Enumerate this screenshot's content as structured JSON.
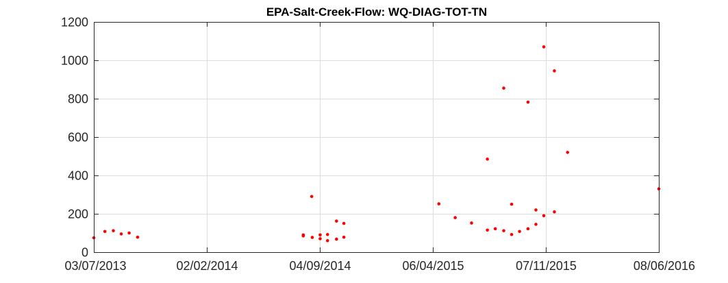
{
  "chart_data": {
    "type": "scatter",
    "title": "EPA-Salt-Creek-Flow: WQ-DIAG-TOT-TN",
    "xlabel": "",
    "ylabel": "",
    "ylim": [
      0,
      1200
    ],
    "yticks": [
      0,
      200,
      400,
      600,
      800,
      1000,
      1200
    ],
    "xlim": [
      "2013-07-03",
      "2016-06-08"
    ],
    "xticks": [
      "03/07/2013",
      "02/02/2014",
      "04/09/2014",
      "06/04/2015",
      "07/11/2015",
      "08/06/2016"
    ],
    "grid": true,
    "marker_color": "#ff0000",
    "series": [
      {
        "points": [
          {
            "x": "2013-07-03",
            "y": 75
          },
          {
            "x": "2013-07-24",
            "y": 108
          },
          {
            "x": "2013-08-09",
            "y": 112
          },
          {
            "x": "2013-08-24",
            "y": 95
          },
          {
            "x": "2013-09-08",
            "y": 100
          },
          {
            "x": "2013-09-24",
            "y": 78
          },
          {
            "x": "2014-08-04",
            "y": 85
          },
          {
            "x": "2014-08-04",
            "y": 90
          },
          {
            "x": "2014-08-20",
            "y": 290
          },
          {
            "x": "2014-08-21",
            "y": 77
          },
          {
            "x": "2014-09-05",
            "y": 90
          },
          {
            "x": "2014-09-05",
            "y": 70
          },
          {
            "x": "2014-09-19",
            "y": 92
          },
          {
            "x": "2014-09-19",
            "y": 60
          },
          {
            "x": "2014-10-06",
            "y": 162
          },
          {
            "x": "2014-10-06",
            "y": 68
          },
          {
            "x": "2014-10-20",
            "y": 150
          },
          {
            "x": "2014-10-20",
            "y": 78
          },
          {
            "x": "2015-04-18",
            "y": 252
          },
          {
            "x": "2015-05-19",
            "y": 180
          },
          {
            "x": "2015-06-19",
            "y": 152
          },
          {
            "x": "2015-07-19",
            "y": 485
          },
          {
            "x": "2015-07-19",
            "y": 115
          },
          {
            "x": "2015-08-03",
            "y": 122
          },
          {
            "x": "2015-08-19",
            "y": 855
          },
          {
            "x": "2015-08-19",
            "y": 112
          },
          {
            "x": "2015-09-03",
            "y": 250
          },
          {
            "x": "2015-09-03",
            "y": 92
          },
          {
            "x": "2015-09-18",
            "y": 108
          },
          {
            "x": "2015-10-04",
            "y": 782
          },
          {
            "x": "2015-10-04",
            "y": 122
          },
          {
            "x": "2015-10-19",
            "y": 220
          },
          {
            "x": "2015-10-19",
            "y": 145
          },
          {
            "x": "2015-11-03",
            "y": 1070
          },
          {
            "x": "2015-11-03",
            "y": 190
          },
          {
            "x": "2015-11-23",
            "y": 945
          },
          {
            "x": "2015-11-23",
            "y": 210
          },
          {
            "x": "2015-12-18",
            "y": 520
          },
          {
            "x": "2016-06-08",
            "y": 330
          }
        ]
      }
    ]
  }
}
